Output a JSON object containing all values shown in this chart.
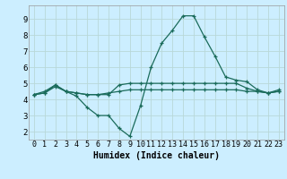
{
  "title": "",
  "xlabel": "Humidex (Indice chaleur)",
  "bg_color": "#cceeff",
  "grid_color": "#b8d8d8",
  "line_color": "#1a6b5a",
  "xlim": [
    -0.5,
    23.5
  ],
  "ylim": [
    1.5,
    9.85
  ],
  "yticks": [
    2,
    3,
    4,
    5,
    6,
    7,
    8,
    9
  ],
  "xticks": [
    0,
    1,
    2,
    3,
    4,
    5,
    6,
    7,
    8,
    9,
    10,
    11,
    12,
    13,
    14,
    15,
    16,
    17,
    18,
    19,
    20,
    21,
    22,
    23
  ],
  "line1_x": [
    0,
    1,
    2,
    3,
    4,
    5,
    6,
    7,
    8,
    9,
    10,
    11,
    12,
    13,
    14,
    15,
    16,
    17,
    18,
    19,
    20,
    21,
    22,
    23
  ],
  "line1_y": [
    4.3,
    4.5,
    4.9,
    4.5,
    4.2,
    3.5,
    3.0,
    3.0,
    2.2,
    1.7,
    3.6,
    6.0,
    7.5,
    8.3,
    9.2,
    9.2,
    7.9,
    6.7,
    5.4,
    5.2,
    5.1,
    4.6,
    4.4,
    4.6
  ],
  "line2_x": [
    0,
    1,
    2,
    3,
    4,
    5,
    6,
    7,
    8,
    9,
    10,
    11,
    12,
    13,
    14,
    15,
    16,
    17,
    18,
    19,
    20,
    21,
    22,
    23
  ],
  "line2_y": [
    4.3,
    4.4,
    4.9,
    4.5,
    4.4,
    4.3,
    4.3,
    4.3,
    4.9,
    5.0,
    5.0,
    5.0,
    5.0,
    5.0,
    5.0,
    5.0,
    5.0,
    5.0,
    5.0,
    5.0,
    4.7,
    4.5,
    4.4,
    4.5
  ],
  "line3_x": [
    0,
    1,
    2,
    3,
    4,
    5,
    6,
    7,
    8,
    9,
    10,
    11,
    12,
    13,
    14,
    15,
    16,
    17,
    18,
    19,
    20,
    21,
    22,
    23
  ],
  "line3_y": [
    4.3,
    4.4,
    4.8,
    4.5,
    4.4,
    4.3,
    4.3,
    4.4,
    4.5,
    4.6,
    4.6,
    4.6,
    4.6,
    4.6,
    4.6,
    4.6,
    4.6,
    4.6,
    4.6,
    4.6,
    4.5,
    4.5,
    4.4,
    4.5
  ],
  "xlabel_fontsize": 7,
  "tick_fontsize": 6,
  "marker_size": 3,
  "linewidth": 0.9
}
